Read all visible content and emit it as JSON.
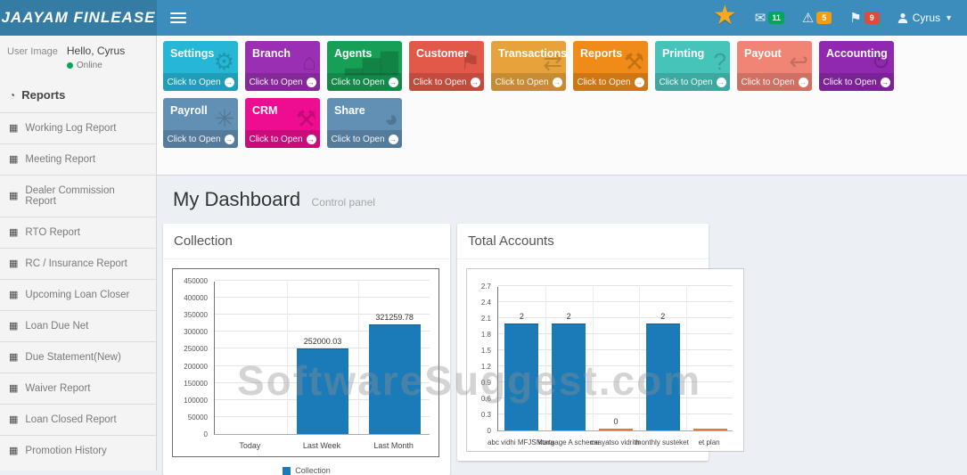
{
  "header": {
    "logo": "JAAYAM FINLEASE",
    "notifications": [
      {
        "icon": "envelope-icon",
        "count": "11",
        "color": "#00a65a"
      },
      {
        "icon": "warning-icon",
        "count": "5",
        "color": "#f39c12"
      },
      {
        "icon": "flag-icon",
        "count": "9",
        "color": "#dd4b39"
      }
    ],
    "user_menu": {
      "name": "Cyrus"
    }
  },
  "sidebar": {
    "user_image_label": "User Image",
    "greeting": "Hello, Cyrus",
    "status": "Online",
    "section": "Reports",
    "items": [
      "Working Log Report",
      "Meeting Report",
      "Dealer Commission Report",
      "RTO Report",
      "RC / Insurance Report",
      "Upcoming Loan Closer",
      "Loan Due Net",
      "Due Statement(New)",
      "Waiver Report",
      "Loan Closed Report",
      "Promotion History"
    ]
  },
  "tiles": [
    {
      "label": "Settings",
      "cta": "Click to Open",
      "color": "#26b7d7",
      "icon": "users-icon",
      "glyph": "⚙"
    },
    {
      "label": "Branch",
      "cta": "Click to Open",
      "color": "#9b2fb4",
      "icon": "building-icon",
      "glyph": "⌂"
    },
    {
      "label": "Agents",
      "cta": "Click to Open",
      "color": "#17a055",
      "icon": "bar-chart-icon",
      "glyph": "▂▅▇"
    },
    {
      "label": "Customer",
      "cta": "Click to Open",
      "color": "#e25849",
      "icon": "pushpin-icon",
      "glyph": "⚑"
    },
    {
      "label": "Transactions",
      "cta": "Click to Open",
      "color": "#e8a23c",
      "icon": "exchange-icon",
      "glyph": "⇄"
    },
    {
      "label": "Reports",
      "cta": "Click to Open",
      "color": "#f08a18",
      "icon": "wrench-icon",
      "glyph": "⚒"
    },
    {
      "label": "Printing",
      "cta": "Click to Open",
      "color": "#46c4ba",
      "icon": "question-icon",
      "glyph": "?"
    },
    {
      "label": "Payout",
      "cta": "Click to Open",
      "color": "#f08475",
      "icon": "undo-arrow-icon",
      "glyph": "↩"
    },
    {
      "label": "Accounting",
      "cta": "Click to Open",
      "color": "#9128b0",
      "icon": "refresh-icon",
      "glyph": "↻"
    },
    {
      "label": "Payroll",
      "cta": "Click to Open",
      "color": "#6290b5",
      "icon": "asterisk-icon",
      "glyph": "✳"
    },
    {
      "label": "CRM",
      "cta": "Click to Open",
      "color": "#ee0d90",
      "icon": "tools-icon",
      "glyph": "⚒"
    },
    {
      "label": "Share",
      "cta": "Click to Open",
      "color": "#6290b5",
      "icon": "pie-chart-icon",
      "glyph": "◕"
    }
  ],
  "dashboard": {
    "title": "My Dashboard",
    "subtitle": "Control panel"
  },
  "watermark": "SoftwareSuggest.com",
  "chart_data": [
    {
      "type": "bar",
      "title": "Collection",
      "categories": [
        "Today",
        "Last Week",
        "Last Month"
      ],
      "values": [
        0,
        252000.03,
        321259.78
      ],
      "value_labels": [
        "",
        "252000.03",
        "321259.78"
      ],
      "ylim": [
        0,
        450000
      ],
      "yticks": [
        "0",
        "50000",
        "100000",
        "150000",
        "200000",
        "250000",
        "300000",
        "350000",
        "400000",
        "450000"
      ],
      "bar_color": "#1b7ab8",
      "grid": true,
      "legend_position": "bottom",
      "legend": [
        {
          "label": "Collection",
          "color": "#1b7ab8"
        }
      ]
    },
    {
      "type": "bar",
      "title": "Total Accounts",
      "categories": [
        "abc vidhi MFJS ktara",
        "Mortgage A scheme",
        "caayatso vidrith",
        "monthly susteket",
        "et plan"
      ],
      "values": [
        2,
        2,
        0,
        2,
        0
      ],
      "value_labels": [
        "2",
        "2",
        "0",
        "2",
        ""
      ],
      "ylim": [
        0,
        2.7
      ],
      "yticks": [
        "0",
        "0.3",
        "0.6",
        "0.9",
        "1.2",
        "1.5",
        "1.8",
        "2.1",
        "2.4",
        "2.7"
      ],
      "bar_color": "#1b7ab8",
      "zero_marker_color": "#e07b39",
      "zero_marker_positions": [
        2,
        4
      ],
      "grid": true,
      "xlabels_overlapping": true
    }
  ]
}
